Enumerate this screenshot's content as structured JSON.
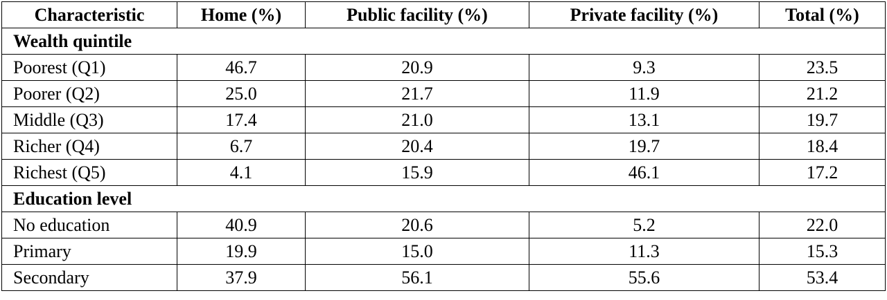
{
  "table": {
    "header": [
      "Characteristic",
      "Home (%)",
      "Public facility (%)",
      "Private facility (%)",
      "Total (%)"
    ],
    "sections": [
      {
        "title": "Wealth quintile",
        "rows": [
          [
            "Poorest (Q1)",
            "46.7",
            "20.9",
            "9.3",
            "23.5"
          ],
          [
            "Poorer (Q2)",
            "25.0",
            "21.7",
            "11.9",
            "21.2"
          ],
          [
            "Middle (Q3)",
            "17.4",
            "21.0",
            "13.1",
            "19.7"
          ],
          [
            "Richer (Q4)",
            "6.7",
            "20.4",
            "19.7",
            "18.4"
          ],
          [
            "Richest (Q5)",
            "4.1",
            "15.9",
            "46.1",
            "17.2"
          ]
        ]
      },
      {
        "title": "Education level",
        "rows": [
          [
            "No education",
            "40.9",
            "20.6",
            "5.2",
            "22.0"
          ],
          [
            "Primary",
            "19.9",
            "15.0",
            "11.3",
            "15.3"
          ],
          [
            "Secondary",
            "37.9",
            "56.1",
            "55.6",
            "53.4"
          ]
        ]
      }
    ]
  }
}
